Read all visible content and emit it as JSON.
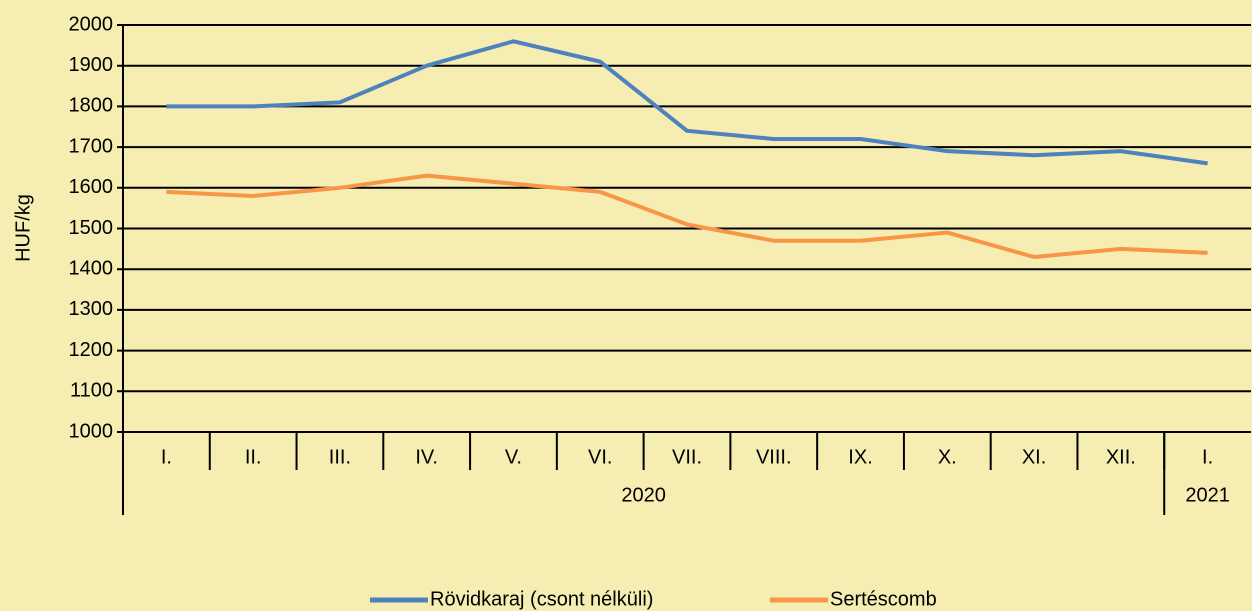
{
  "chart_data": {
    "type": "line",
    "y_label": "HUF/kg",
    "categories": [
      "I.",
      "II.",
      "III.",
      "IV.",
      "V.",
      "VI.",
      "VII.",
      "VIII.",
      "IX.",
      "X.",
      "XI.",
      "XII.",
      "I."
    ],
    "groups": [
      {
        "label": "2020",
        "span": 12
      },
      {
        "label": "2021",
        "span": 1
      }
    ],
    "series": [
      {
        "name": "Rövidkaraj (csont nélküli)",
        "color": "#4f81bd",
        "values": [
          1800,
          1800,
          1810,
          1900,
          1960,
          1910,
          1740,
          1720,
          1720,
          1690,
          1680,
          1690,
          1660
        ]
      },
      {
        "name": "Sertéscomb",
        "color": "#f79646",
        "values": [
          1590,
          1580,
          1600,
          1630,
          1610,
          1590,
          1510,
          1470,
          1470,
          1490,
          1430,
          1450,
          1440
        ]
      }
    ],
    "ylim": [
      1000,
      2000
    ],
    "yticks": [
      1000,
      1100,
      1200,
      1300,
      1400,
      1500,
      1600,
      1700,
      1800,
      1900,
      2000
    ],
    "grid": true,
    "legend": "bottom"
  }
}
